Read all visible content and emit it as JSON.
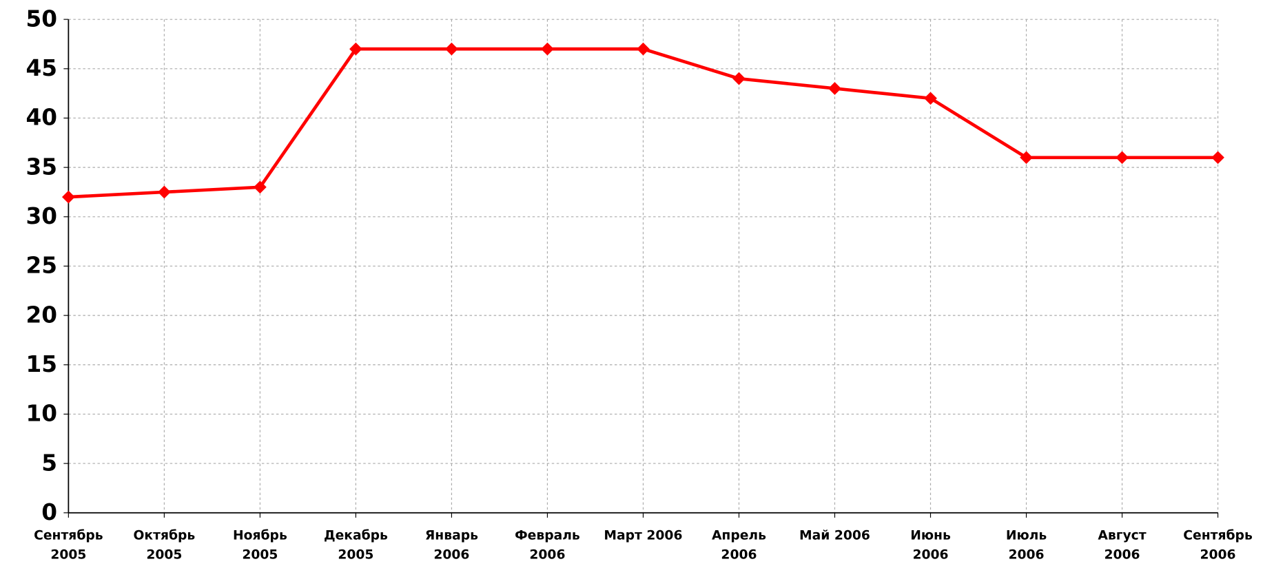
{
  "chart_data": {
    "type": "line",
    "categories": [
      "Сентябрь 2005",
      "Октябрь 2005",
      "Ноябрь 2005",
      "Декабрь 2005",
      "Январь 2006",
      "Февраль 2006",
      "Март 2006",
      "Апрель 2006",
      "Май 2006",
      "Июнь 2006",
      "Июль 2006",
      "Август 2006",
      "Сентябрь 2006"
    ],
    "series": [
      {
        "color": "#ff0000",
        "values": [
          32,
          32.5,
          33,
          47,
          47,
          47,
          47,
          44,
          43,
          42,
          36,
          36,
          36
        ]
      }
    ],
    "ylim": [
      0,
      50
    ],
    "yticks": [
      0,
      5,
      10,
      15,
      20,
      25,
      30,
      35,
      40,
      45,
      50
    ],
    "grid": true
  }
}
